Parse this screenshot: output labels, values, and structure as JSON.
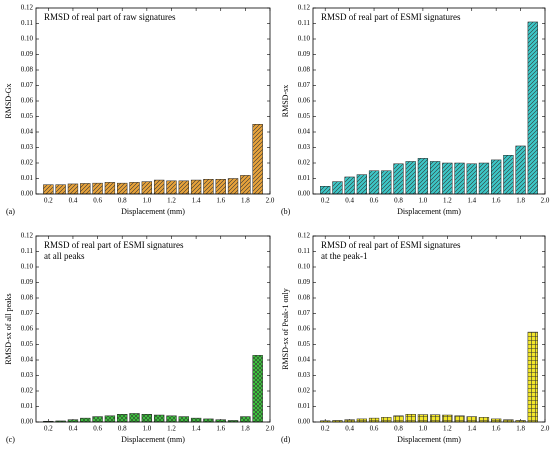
{
  "chart_data": [
    {
      "type": "bar",
      "panel": "(a)",
      "title": [
        "RMSD of real part of raw signatures"
      ],
      "xlabel": "Displacement (mm)",
      "ylabel": "RMSD-Gx",
      "x": [
        0.2,
        0.3,
        0.4,
        0.5,
        0.6,
        0.7,
        0.8,
        0.9,
        1.0,
        1.1,
        1.2,
        1.3,
        1.4,
        1.5,
        1.6,
        1.7,
        1.8,
        1.9
      ],
      "values": [
        0.006,
        0.006,
        0.0065,
        0.0068,
        0.007,
        0.0075,
        0.007,
        0.0075,
        0.008,
        0.009,
        0.0085,
        0.0085,
        0.009,
        0.0095,
        0.0095,
        0.01,
        0.012,
        0.045
      ],
      "color": "#e8a33a",
      "hatch": "diagonal",
      "xlim": [
        0.1,
        2.0
      ],
      "xticks": [
        0.2,
        0.4,
        0.6,
        0.8,
        {
          "value": 1,
          "label": "1.0"
        },
        1.2,
        1.4,
        1.6,
        1.8,
        {
          "value": 2,
          "label": "2.0"
        }
      ],
      "ylim": [
        0,
        0.12
      ],
      "yticks": [
        {
          "value": 0,
          "label": "0.00"
        },
        0.01,
        0.02,
        0.03,
        0.04,
        0.05,
        0.06,
        0.07,
        0.08,
        0.09,
        {
          "value": 0.1,
          "label": "0.10"
        },
        0.11,
        0.12
      ]
    },
    {
      "type": "bar",
      "panel": "(b)",
      "title": [
        "RMSD of real part of ESMI signatures"
      ],
      "xlabel": "Displacement (mm)",
      "ylabel": "RMSD-sx",
      "x": [
        0.2,
        0.3,
        0.4,
        0.5,
        0.6,
        0.7,
        0.8,
        0.9,
        1.0,
        1.1,
        1.2,
        1.3,
        1.4,
        1.5,
        1.6,
        1.7,
        1.8,
        1.9
      ],
      "values": [
        0.005,
        0.008,
        0.011,
        0.0125,
        0.015,
        0.015,
        0.0195,
        0.021,
        0.023,
        0.021,
        0.02,
        0.02,
        0.0195,
        0.02,
        0.022,
        0.025,
        0.031,
        0.111
      ],
      "color": "#3cc8c8",
      "hatch": "diagonal",
      "xlim": [
        0.1,
        2.0
      ],
      "xticks": [
        0.2,
        0.4,
        0.6,
        0.8,
        {
          "value": 1,
          "label": "1.0"
        },
        1.2,
        1.4,
        1.6,
        1.8,
        {
          "value": 2,
          "label": "2.0"
        }
      ],
      "ylim": [
        0,
        0.12
      ],
      "yticks": [
        {
          "value": 0,
          "label": "0.00"
        },
        0.01,
        0.02,
        0.03,
        0.04,
        0.05,
        0.06,
        0.07,
        0.08,
        0.09,
        {
          "value": 0.1,
          "label": "0.10"
        },
        0.11,
        0.12
      ]
    },
    {
      "type": "bar",
      "panel": "(c)",
      "title": [
        "RMSD of real part of ESMI signatures",
        "at all peaks"
      ],
      "xlabel": "Displacement (mm)",
      "ylabel": "RMSD-sx of all peaks",
      "x": [
        0.2,
        0.3,
        0.4,
        0.5,
        0.6,
        0.7,
        0.8,
        0.9,
        1.0,
        1.1,
        1.2,
        1.3,
        1.4,
        1.5,
        1.6,
        1.7,
        1.8,
        1.9
      ],
      "values": [
        0.0005,
        0.0007,
        0.0015,
        0.0025,
        0.0035,
        0.004,
        0.005,
        0.0055,
        0.005,
        0.0045,
        0.004,
        0.0035,
        0.0025,
        0.002,
        0.0015,
        0.001,
        0.0035,
        0.043
      ],
      "color": "#3ccc3c",
      "hatch": "cross",
      "xlim": [
        0.1,
        2.0
      ],
      "xticks": [
        0.2,
        0.4,
        0.6,
        0.8,
        {
          "value": 1,
          "label": "1.0"
        },
        1.2,
        1.4,
        1.6,
        1.8,
        {
          "value": 2,
          "label": "2.0"
        }
      ],
      "ylim": [
        0,
        0.12
      ],
      "yticks": [
        {
          "value": 0,
          "label": "0.00"
        },
        0.01,
        0.02,
        0.03,
        0.04,
        0.05,
        0.06,
        0.07,
        0.08,
        0.09,
        {
          "value": 0.1,
          "label": "0.10"
        },
        0.11,
        0.12
      ]
    },
    {
      "type": "bar",
      "panel": "(d)",
      "title": [
        "RMSD of real part of ESMI signatures",
        "at the  peak-1"
      ],
      "xlabel": "Displacement (mm)",
      "ylabel": "RMSD-sx of Peak-1 only",
      "x": [
        0.2,
        0.3,
        0.4,
        0.5,
        0.6,
        0.7,
        0.8,
        0.9,
        1.0,
        1.1,
        1.2,
        1.3,
        1.4,
        1.5,
        1.6,
        1.7,
        1.8,
        1.9
      ],
      "values": [
        0.0008,
        0.001,
        0.0015,
        0.002,
        0.0025,
        0.003,
        0.004,
        0.005,
        0.0048,
        0.0047,
        0.0045,
        0.004,
        0.0035,
        0.003,
        0.002,
        0.0015,
        0.001,
        0.058
      ],
      "color": "#f2e62a",
      "hatch": "grid",
      "xlim": [
        0.1,
        2.0
      ],
      "xticks": [
        0.2,
        0.4,
        0.6,
        0.8,
        {
          "value": 1,
          "label": "1.0"
        },
        1.2,
        1.4,
        1.6,
        1.8,
        {
          "value": 2,
          "label": "2.0"
        }
      ],
      "ylim": [
        0,
        0.12
      ],
      "yticks": [
        {
          "value": 0,
          "label": "0.00"
        },
        0.01,
        0.02,
        0.03,
        0.04,
        0.05,
        0.06,
        0.07,
        0.08,
        0.09,
        {
          "value": 0.1,
          "label": "0.10"
        },
        0.11,
        0.12
      ]
    }
  ]
}
